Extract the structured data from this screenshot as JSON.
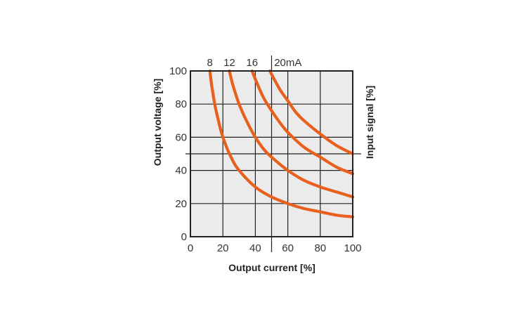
{
  "chart_data": {
    "type": "line",
    "title": "",
    "xlabel": "Output current [%]",
    "ylabel": "Output voltage [%]",
    "y2label": "Input signal [%]",
    "xlim": [
      0,
      100
    ],
    "ylim": [
      0,
      100
    ],
    "x_ticks": [
      "0",
      "20",
      "40",
      "60",
      "80",
      "100"
    ],
    "y_ticks": [
      "0",
      "20",
      "40",
      "60",
      "80",
      "100"
    ],
    "grid": true,
    "top_marker_x": 50,
    "right_marker_y": 50,
    "series": [
      {
        "name": "8",
        "top_label": "8",
        "x": [
          12,
          13,
          15,
          17,
          20,
          25,
          30,
          40,
          50,
          60,
          70,
          80,
          90,
          100
        ],
        "y": [
          100,
          92,
          80,
          71,
          60,
          48,
          40,
          30,
          24,
          20,
          17,
          15,
          13,
          12
        ]
      },
      {
        "name": "12",
        "top_label": "12",
        "x": [
          24,
          26,
          30,
          35,
          40,
          45,
          50,
          60,
          70,
          80,
          90,
          100
        ],
        "y": [
          100,
          92,
          80,
          69,
          60,
          53,
          48,
          40,
          34,
          30,
          27,
          24
        ]
      },
      {
        "name": "16",
        "top_label": "16",
        "x": [
          38,
          40,
          45,
          50,
          55,
          60,
          70,
          80,
          90,
          100
        ],
        "y": [
          100,
          95,
          84,
          76,
          69,
          63,
          54,
          48,
          42,
          38
        ]
      },
      {
        "name": "20",
        "top_label": "20mA",
        "x": [
          49,
          50,
          55,
          60,
          65,
          70,
          80,
          90,
          100
        ],
        "y": [
          100,
          98,
          89,
          82,
          75,
          70,
          62,
          55,
          50
        ]
      }
    ],
    "colors": {
      "curve": "#e8601c",
      "grid": "#222222",
      "plot_bg": "#ebebeb"
    }
  }
}
